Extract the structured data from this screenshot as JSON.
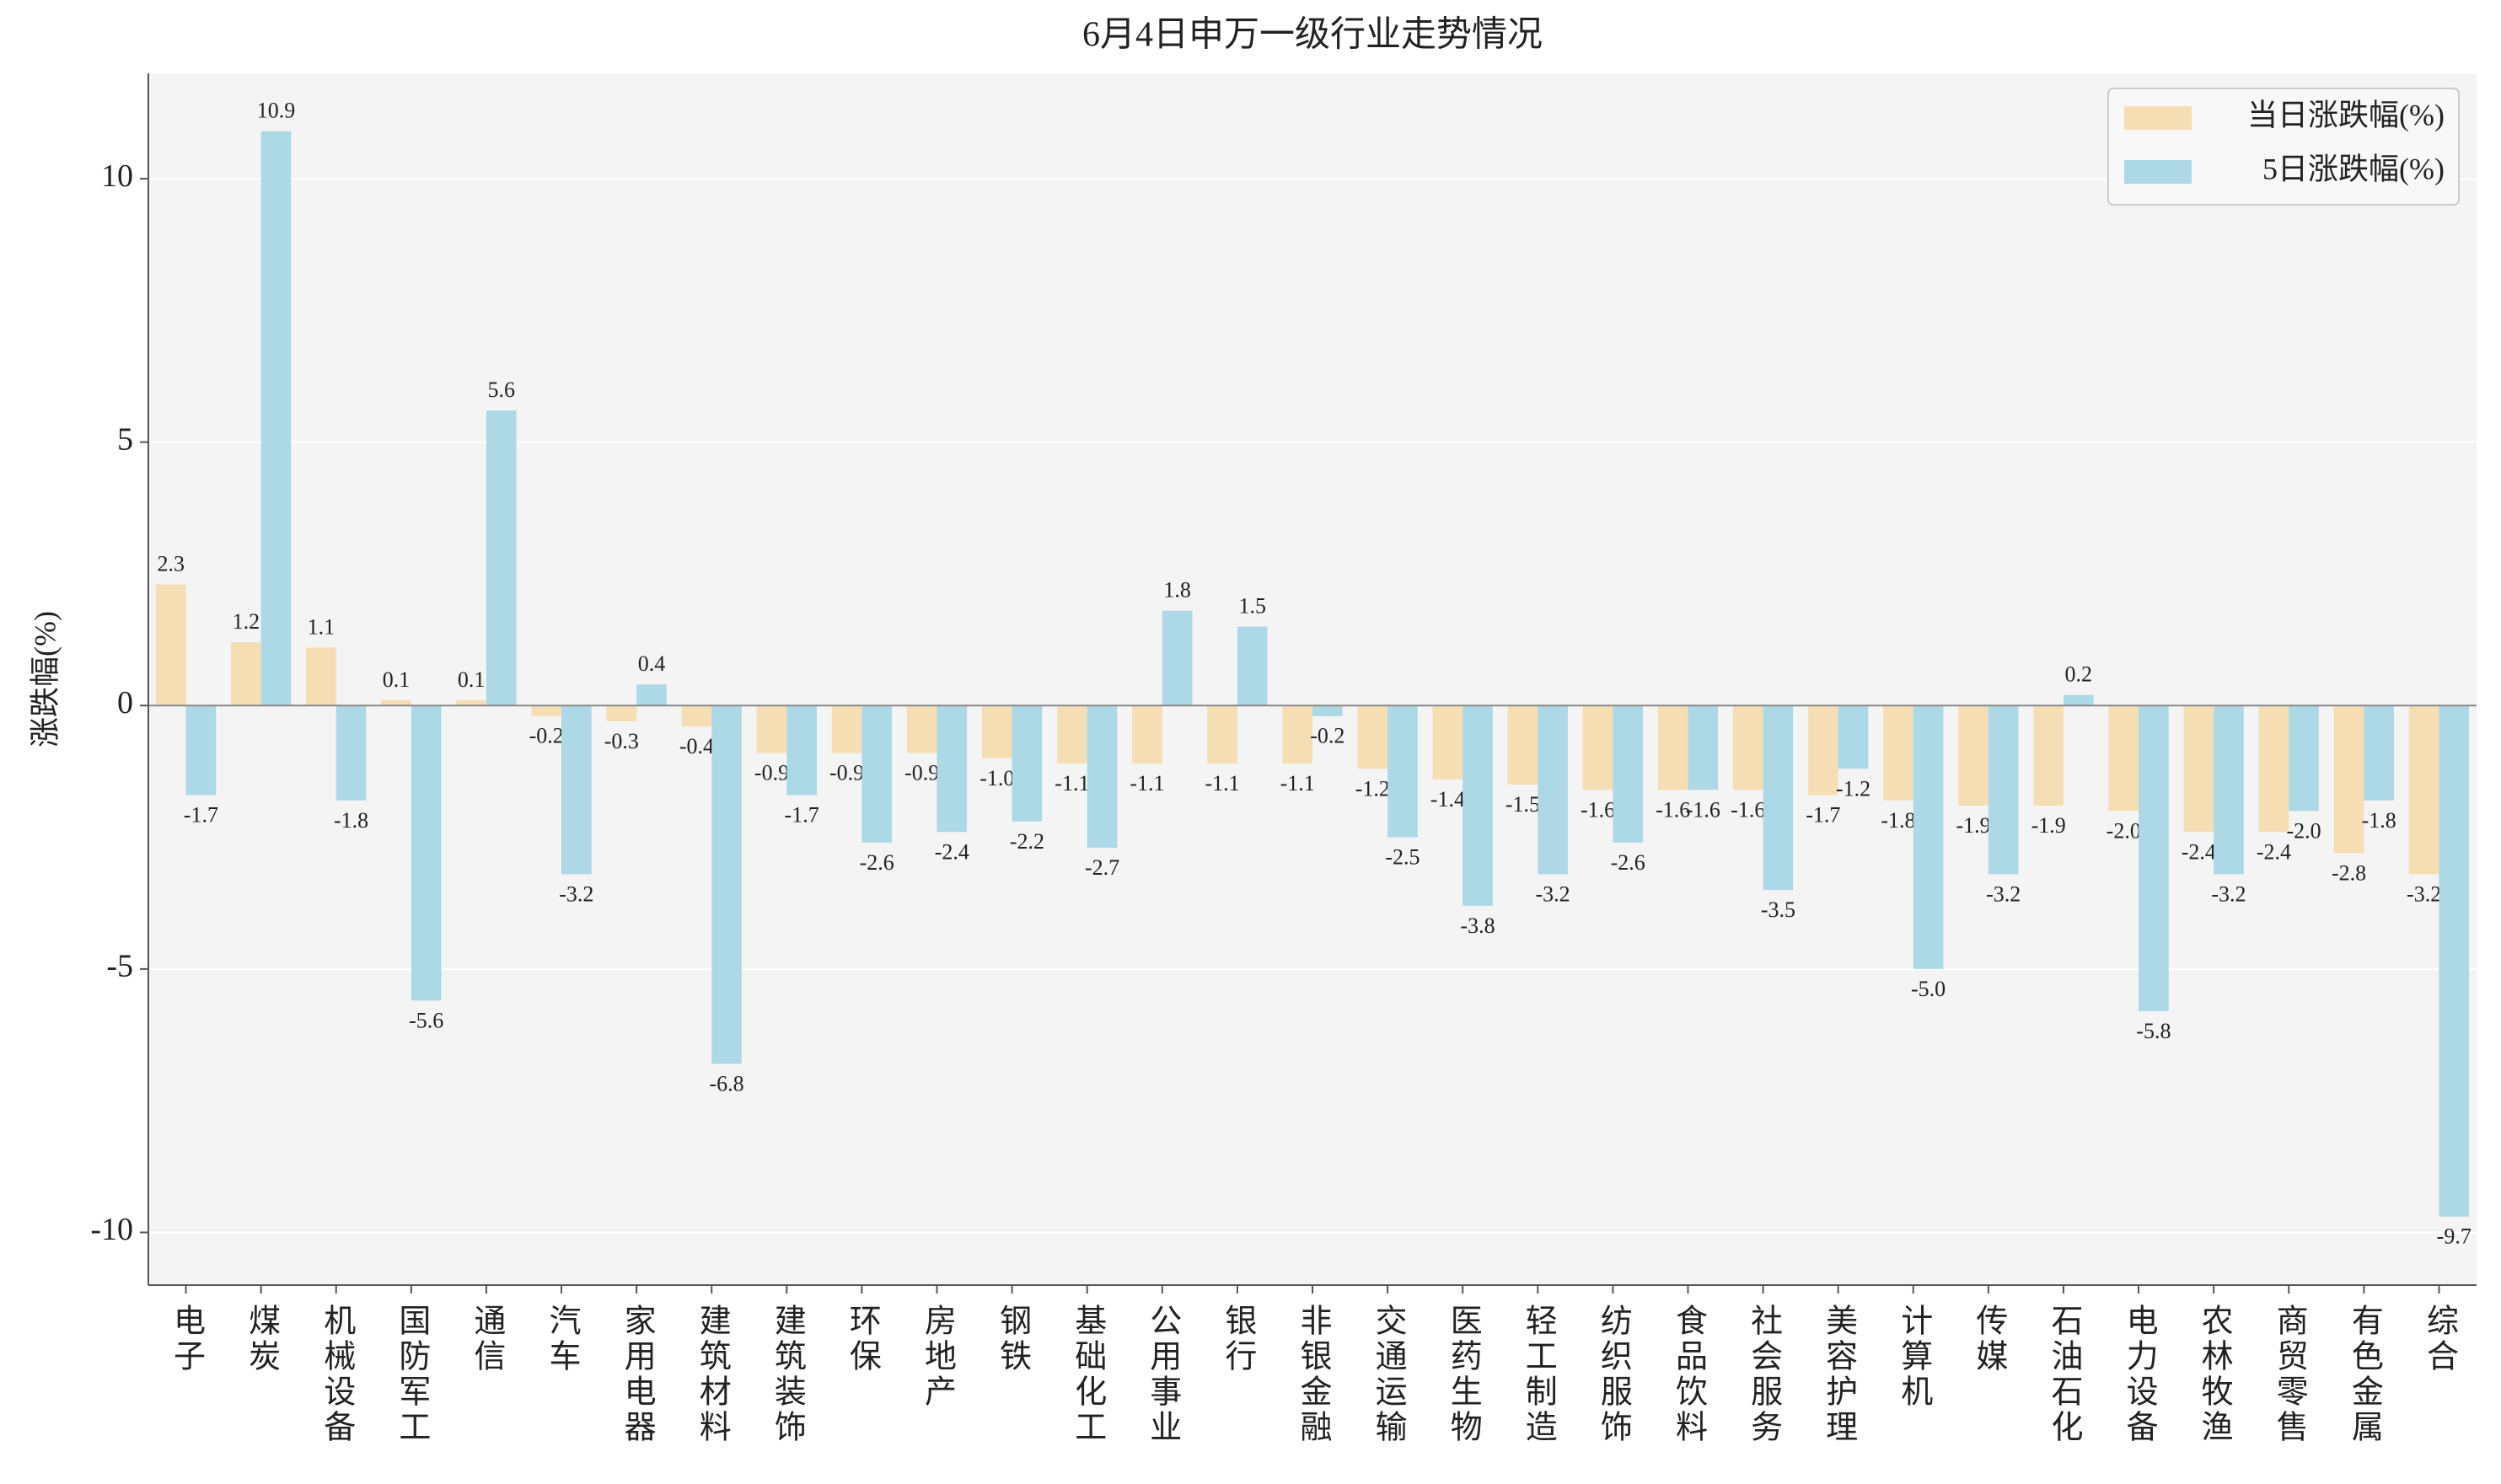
{
  "chart_data": {
    "type": "bar",
    "title": "6月4日申万一级行业走势情况",
    "ylabel": "涨跌幅(%)",
    "categories": [
      "电子",
      "煤炭",
      "机械设备",
      "国防军工",
      "通信",
      "汽车",
      "家用电器",
      "建筑材料",
      "建筑装饰",
      "环保",
      "房地产",
      "钢铁",
      "基础化工",
      "公用事业",
      "银行",
      "非银金融",
      "交通运输",
      "医药生物",
      "轻工制造",
      "纺织服饰",
      "食品饮料",
      "社会服务",
      "美容护理",
      "计算机",
      "传媒",
      "石油石化",
      "电力设备",
      "农林牧渔",
      "商贸零售",
      "有色金属",
      "综合"
    ],
    "series": [
      {
        "name": "当日涨跌幅(%)",
        "color": "#f5deb3",
        "values": [
          2.3,
          1.2,
          1.1,
          0.1,
          0.1,
          -0.2,
          -0.3,
          -0.4,
          -0.9,
          -0.9,
          -0.9,
          -1.0,
          -1.1,
          -1.1,
          -1.1,
          -1.1,
          -1.2,
          -1.4,
          -1.5,
          -1.6,
          -1.6,
          -1.6,
          -1.7,
          -1.8,
          -1.9,
          -1.9,
          -2.0,
          -2.4,
          -2.4,
          -2.8,
          -3.2
        ],
        "value_labels": [
          "2.3",
          "1.2",
          "1.1",
          "0.1",
          "0.1",
          "-0.2",
          "-0.3",
          "-0.4",
          "-0.9",
          "-0.9",
          "-0.9",
          "-1.0",
          "-1.1",
          "-1.1",
          "-1.1",
          "-1.1",
          "-1.2",
          "-1.4",
          "-1.5",
          "-1.6",
          "-1.6",
          "-1.6",
          "-1.7",
          "-1.8",
          "-1.9",
          "-1.9",
          "-2.0",
          "-2.4",
          "-2.4",
          "-2.8",
          "-3.2"
        ]
      },
      {
        "name": "5日涨跌幅(%)",
        "color": "#add8e6",
        "values": [
          -1.7,
          10.9,
          -1.8,
          -5.6,
          5.6,
          -3.2,
          0.4,
          -6.8,
          -1.7,
          -2.6,
          -2.4,
          -2.2,
          -2.7,
          1.8,
          1.5,
          -0.2,
          -2.5,
          -3.8,
          -3.2,
          -2.6,
          -1.6,
          -3.5,
          -1.2,
          -5.0,
          -3.2,
          0.2,
          -5.8,
          -3.2,
          -2.0,
          -1.8,
          -9.7
        ],
        "value_labels": [
          "-1.7",
          "10.9",
          "-1.8",
          "-5.6",
          "5.6",
          "-3.2",
          "0.4",
          "-6.8",
          "-1.7",
          "-2.6",
          "-2.4",
          "-2.2",
          "-2.7",
          "1.8",
          "1.5",
          "-0.2",
          "-2.5",
          "-3.8",
          "-3.2",
          "-2.6",
          "-1.6",
          "-3.5",
          "-1.2",
          "-5.0",
          "-3.2",
          "0.2",
          "-5.8",
          "-3.2",
          "-2.0",
          "-1.8",
          "-9.7"
        ]
      }
    ],
    "ylim": [
      -11,
      12
    ],
    "yticks": [
      -10,
      -5,
      0,
      5,
      10
    ],
    "grid": true,
    "legend": "upper right"
  }
}
